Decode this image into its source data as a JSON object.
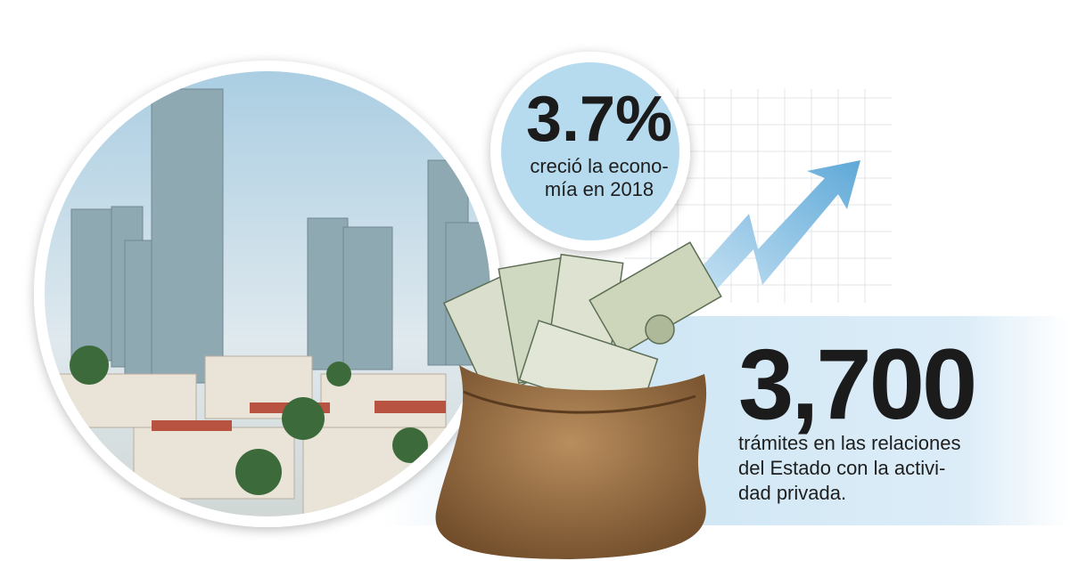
{
  "growth": {
    "value": "3.7%",
    "caption": [
      "creció la econo-",
      "mía en 2018"
    ]
  },
  "procedures": {
    "value": "3,700",
    "caption": [
      "trámites en las relaciones",
      "del Estado con la activi-",
      "dad privada."
    ]
  }
}
